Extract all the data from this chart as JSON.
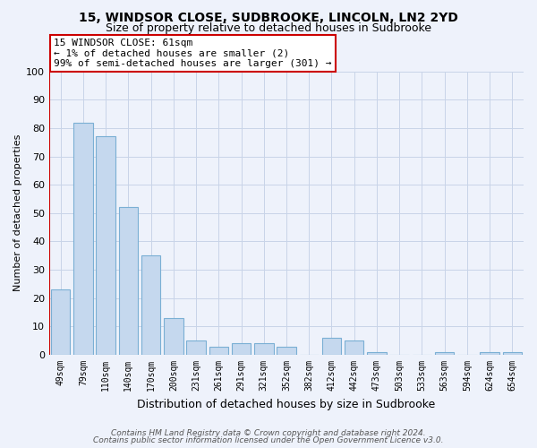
{
  "title1": "15, WINDSOR CLOSE, SUDBROOKE, LINCOLN, LN2 2YD",
  "title2": "Size of property relative to detached houses in Sudbrooke",
  "xlabel": "Distribution of detached houses by size in Sudbrooke",
  "ylabel": "Number of detached properties",
  "categories": [
    "49sqm",
    "79sqm",
    "110sqm",
    "140sqm",
    "170sqm",
    "200sqm",
    "231sqm",
    "261sqm",
    "291sqm",
    "321sqm",
    "352sqm",
    "382sqm",
    "412sqm",
    "442sqm",
    "473sqm",
    "503sqm",
    "533sqm",
    "563sqm",
    "594sqm",
    "624sqm",
    "654sqm"
  ],
  "values": [
    23,
    82,
    77,
    52,
    35,
    13,
    5,
    3,
    4,
    4,
    3,
    0,
    6,
    5,
    1,
    0,
    0,
    1,
    0,
    1,
    1
  ],
  "bar_color": "#c5d8ee",
  "bar_edge_color": "#7aafd4",
  "ylim": [
    0,
    100
  ],
  "vline_color": "#cc0000",
  "annotation_text": "15 WINDSOR CLOSE: 61sqm\n← 1% of detached houses are smaller (2)\n99% of semi-detached houses are larger (301) →",
  "annotation_box_color": "#ffffff",
  "annotation_box_edge": "#cc0000",
  "footer1": "Contains HM Land Registry data © Crown copyright and database right 2024.",
  "footer2": "Contains public sector information licensed under the Open Government Licence v3.0.",
  "background_color": "#eef2fb",
  "grid_color": "#c8d4e8",
  "title1_fontsize": 10,
  "title2_fontsize": 9,
  "xlabel_fontsize": 9,
  "ylabel_fontsize": 8,
  "tick_fontsize": 8,
  "xtick_fontsize": 7,
  "annotation_fontsize": 8,
  "footer_fontsize": 6.5
}
